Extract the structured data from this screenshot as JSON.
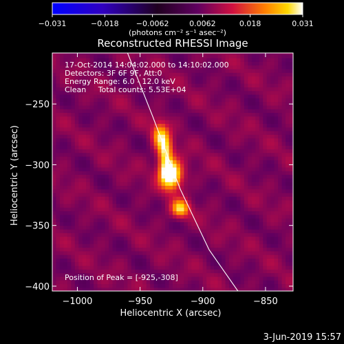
{
  "chart_data": {
    "type": "heatmap",
    "title": "Reconstructed RHESSI Image",
    "xlabel": "Heliocentric X (arcsec)",
    "ylabel": "Heliocentric Y (arcsec)",
    "xlim": [
      -1020,
      -828
    ],
    "ylim": [
      -404,
      -208
    ],
    "x_ticks": [
      {
        "value": -1000,
        "label": "−1000"
      },
      {
        "value": -950,
        "label": "−950"
      },
      {
        "value": -900,
        "label": "−900"
      },
      {
        "value": -850,
        "label": "−850"
      }
    ],
    "y_ticks": [
      {
        "value": -250,
        "label": "−250"
      },
      {
        "value": -300,
        "label": "−300"
      },
      {
        "value": -350,
        "label": "−350"
      },
      {
        "value": -400,
        "label": "−400"
      }
    ],
    "colorbar": {
      "min": -0.031,
      "max": 0.031,
      "ticks": [
        {
          "value": -0.031,
          "label": "−0.031"
        },
        {
          "value": -0.018,
          "label": "−0.018"
        },
        {
          "value": -0.0062,
          "label": "−0.0062"
        },
        {
          "value": 0.0062,
          "label": "0.0062"
        },
        {
          "value": 0.018,
          "label": "0.018"
        },
        {
          "value": 0.031,
          "label": "0.031"
        }
      ],
      "unit_label": "(photons cm⁻² s⁻¹ asec⁻²)"
    },
    "info_lines": [
      "17-Oct-2014 14:04:02.000 to 14:10:02.000",
      "Detectors: 3F 6F 9F, Att:0",
      "Energy Range: 6.0 - 12.0 keV",
      "Clean     Total counts: 5.53E+04"
    ],
    "peak_label": "Position of Peak = [-925,-308]",
    "peak": [
      -925,
      -308
    ],
    "sources": [
      {
        "x": -925,
        "y": -308,
        "sx": 6,
        "sy": 8,
        "amp": 0.031
      },
      {
        "x": -930,
        "y": -290,
        "sx": 4,
        "sy": 12,
        "amp": 0.021
      },
      {
        "x": -918,
        "y": -336,
        "sx": 5,
        "sy": 5,
        "amp": 0.02
      },
      {
        "x": -935,
        "y": -275,
        "sx": 4,
        "sy": 8,
        "amp": 0.014
      }
    ],
    "background_level": 0.0075,
    "limb_line": [
      [
        -960,
        -208
      ],
      [
        -940,
        -260
      ],
      [
        -918,
        -320
      ],
      [
        -895,
        -370
      ],
      [
        -872,
        -404
      ]
    ],
    "colors": {
      "background": "#000000",
      "limb": "#ffffff"
    }
  },
  "footer": {
    "date": "3-Jun-2019 15:57"
  }
}
